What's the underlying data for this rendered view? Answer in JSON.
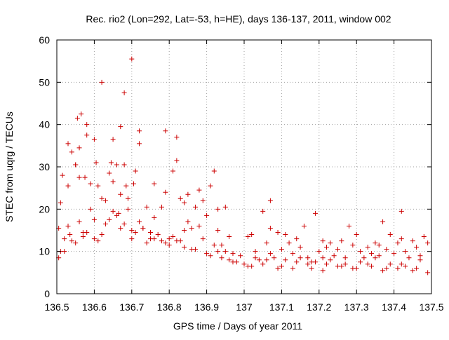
{
  "chart_data": {
    "type": "scatter",
    "title": "Rec. rio2 (Lon=292, Lat=-53, h=HE), days 136-137, 2011, window 002",
    "xlabel": "GPS time / Days of year 2011",
    "ylabel": "STEC from uqrg / TECUs",
    "xlim": [
      136.5,
      137.5
    ],
    "ylim": [
      0,
      60
    ],
    "x_ticks": [
      136.5,
      136.6,
      136.7,
      136.8,
      136.9,
      137.0,
      137.1,
      137.2,
      137.3,
      137.4,
      137.5
    ],
    "x_tick_labels": [
      "136.5",
      "136.6",
      "136.7",
      "136.8",
      "136.9",
      "137",
      "137.1",
      "137.2",
      "137.3",
      "137.4",
      "137.5"
    ],
    "y_ticks": [
      0,
      10,
      20,
      30,
      40,
      50,
      60
    ],
    "y_tick_labels": [
      "0",
      "10",
      "20",
      "30",
      "40",
      "50",
      "60"
    ],
    "grid": true,
    "marker": "plus",
    "series_color": "#cc0000",
    "series": [
      {
        "name": "STEC",
        "x": [
          136.505,
          136.505,
          136.51,
          136.515,
          136.52,
          136.53,
          136.535,
          136.54,
          136.55,
          136.555,
          136.56,
          136.565,
          136.57,
          136.575,
          136.58,
          136.59,
          136.6,
          136.605,
          136.61,
          136.62,
          136.63,
          136.64,
          136.645,
          136.65,
          136.66,
          136.665,
          136.67,
          136.68,
          136.685,
          136.69,
          136.7,
          136.705,
          136.71,
          136.72,
          136.73,
          136.74,
          136.75,
          136.76,
          136.77,
          136.78,
          136.79,
          136.8,
          136.81,
          136.82,
          136.83,
          136.84,
          136.85,
          136.86,
          136.87,
          136.88,
          136.89,
          136.9,
          136.91,
          136.92,
          136.93,
          136.94,
          136.95,
          136.96,
          136.97,
          136.98,
          137.0,
          137.01,
          137.02,
          137.03,
          137.04,
          137.05,
          137.06,
          137.07,
          137.08,
          137.09,
          137.1,
          137.11,
          137.12,
          137.13,
          137.14,
          137.15,
          137.16,
          137.17,
          137.18,
          137.19,
          137.2,
          137.21,
          137.22,
          137.23,
          137.24,
          137.25,
          137.26,
          137.27,
          137.28,
          137.29,
          137.3,
          137.31,
          137.32,
          137.33,
          137.34,
          137.35,
          137.36,
          137.37,
          137.38,
          137.39,
          137.4,
          137.41,
          137.42,
          137.43,
          137.44,
          137.45,
          137.46,
          137.47,
          137.48,
          137.49,
          136.52,
          136.55,
          136.57,
          136.6,
          136.62,
          136.65,
          136.68,
          136.7,
          136.73,
          136.76,
          136.8,
          136.83,
          136.86,
          136.9,
          136.93,
          136.96,
          137.02,
          137.06,
          137.1,
          137.14,
          137.18,
          137.22,
          137.26,
          137.3,
          137.34,
          137.38,
          137.42,
          137.46,
          136.51,
          136.54,
          136.58,
          136.61,
          136.64,
          136.67,
          136.71,
          136.74,
          136.78,
          136.81,
          136.84,
          136.87,
          136.91,
          136.94,
          136.97,
          137.01,
          137.05,
          137.09,
          137.13,
          137.17,
          137.21,
          137.25,
          137.29,
          137.33,
          137.37,
          137.41,
          137.45,
          137.49,
          136.53,
          136.56,
          136.59,
          136.63,
          136.66,
          136.69,
          136.72,
          136.75,
          136.79,
          136.82,
          136.85,
          136.88,
          136.92,
          136.95,
          136.99,
          137.03,
          137.07,
          137.11,
          137.15,
          137.19,
          137.23,
          137.27,
          137.31,
          137.35,
          137.39,
          137.43,
          137.47,
          136.62,
          136.68,
          136.7,
          136.56,
          136.55,
          136.58,
          136.65,
          136.72,
          136.79,
          136.82,
          136.67,
          136.6,
          136.53,
          136.76,
          136.84,
          136.89,
          136.93,
          137.07,
          137.21,
          137.42,
          137.36
        ],
        "y": [
          8.5,
          15.5,
          21.5,
          28.0,
          10.0,
          35.5,
          14.0,
          33.5,
          30.5,
          41.5,
          27.5,
          42.5,
          13.5,
          27.5,
          37.5,
          26.0,
          13.0,
          31.0,
          25.5,
          14.0,
          22.0,
          28.5,
          31.0,
          26.5,
          30.5,
          19.0,
          23.5,
          30.5,
          25.5,
          22.5,
          15.0,
          26.0,
          29.0,
          38.5,
          15.5,
          20.5,
          13.0,
          18.0,
          14.0,
          20.5,
          24.0,
          13.0,
          29.0,
          31.5,
          22.5,
          15.0,
          23.5,
          15.5,
          20.5,
          24.5,
          13.0,
          18.5,
          25.5,
          29.0,
          15.0,
          11.5,
          20.5,
          13.5,
          9.5,
          7.5,
          7.0,
          13.5,
          14.0,
          10.0,
          8.0,
          19.5,
          12.0,
          22.0,
          8.5,
          14.5,
          10.5,
          14.0,
          12.0,
          9.5,
          13.0,
          11.0,
          16.0,
          8.5,
          7.5,
          19.0,
          10.0,
          8.5,
          11.0,
          12.0,
          9.0,
          10.5,
          12.5,
          8.5,
          16.0,
          11.5,
          14.0,
          10.0,
          8.5,
          11.0,
          9.5,
          12.0,
          9.0,
          17.0,
          10.5,
          14.0,
          9.5,
          12.0,
          19.5,
          10.0,
          8.5,
          12.5,
          11.0,
          9.0,
          13.5,
          12.0,
          13.0,
          12.0,
          14.5,
          17.5,
          22.5,
          19.5,
          16.5,
          13.0,
          15.5,
          13.0,
          11.5,
          12.5,
          10.5,
          9.5,
          10.0,
          8.0,
          6.5,
          8.0,
          6.5,
          7.5,
          6.0,
          7.0,
          6.5,
          6.0,
          6.5,
          6.0,
          7.0,
          6.0,
          10.0,
          12.5,
          14.5,
          12.5,
          17.5,
          15.5,
          14.5,
          12.0,
          12.5,
          13.5,
          11.0,
          10.5,
          9.0,
          8.5,
          7.5,
          6.5,
          7.0,
          6.0,
          6.0,
          7.0,
          5.5,
          6.5,
          6.0,
          7.0,
          5.5,
          6.0,
          5.5,
          5.0,
          16.0,
          17.0,
          20.0,
          16.5,
          18.5,
          20.0,
          17.0,
          14.5,
          12.0,
          12.5,
          17.0,
          16.0,
          11.5,
          10.0,
          9.0,
          8.5,
          9.5,
          8.0,
          8.5,
          7.5,
          8.0,
          7.0,
          7.5,
          8.5,
          7.0,
          6.5,
          8.0,
          50.0,
          47.5,
          55.5,
          34.5,
          30.5,
          40.0,
          36.5,
          35.5,
          38.5,
          37.0,
          39.5,
          36.5,
          25.5,
          26.0,
          21.5,
          22.0,
          20.0,
          15.5,
          12.5,
          13.0,
          11.5
        ]
      }
    ]
  }
}
